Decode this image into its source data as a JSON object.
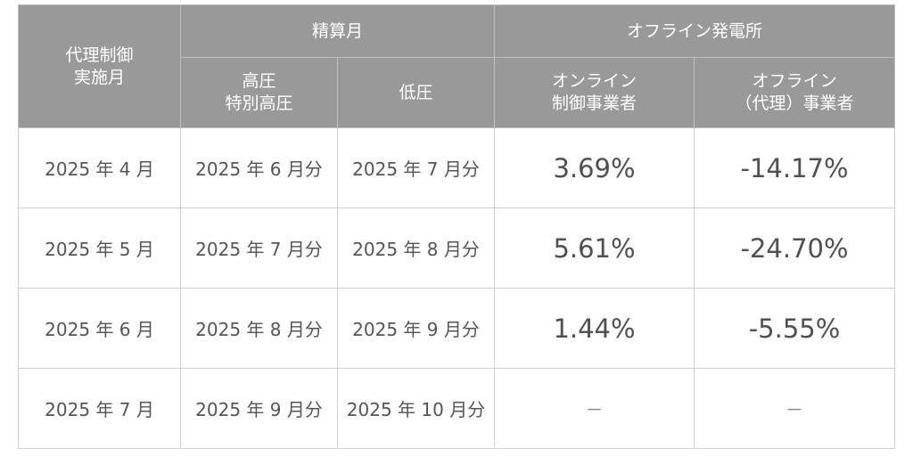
{
  "header": {
    "control_month": [
      "代理制御",
      "実施月"
    ],
    "settlement_month": "精算月",
    "offline_plant": "オフライン発電所",
    "high_voltage": [
      "高圧",
      "特別高圧"
    ],
    "low_voltage": "低圧",
    "online_operator": [
      "オンライン",
      "制御事業者"
    ],
    "offline_operator": [
      "オフライン",
      "（代理）事業者"
    ]
  },
  "rows": [
    {
      "control_month": "2025 年 4 月",
      "high_voltage": "2025 年 6 月分",
      "low_voltage": "2025 年 7 月分",
      "online": "3.69%",
      "offline": "-14.17%"
    },
    {
      "control_month": "2025 年 5 月",
      "high_voltage": "2025 年 7 月分",
      "low_voltage": "2025 年 8 月分",
      "online": "5.61%",
      "offline": "-24.70%"
    },
    {
      "control_month": "2025 年 6 月",
      "high_voltage": "2025 年 8 月分",
      "low_voltage": "2025 年 9 月分",
      "online": "1.44%",
      "offline": "-5.55%"
    },
    {
      "control_month": "2025 年 7 月",
      "high_voltage": "2025 年 9 月分",
      "low_voltage": "2025 年 10 月分",
      "online": "－",
      "offline": "－"
    }
  ]
}
